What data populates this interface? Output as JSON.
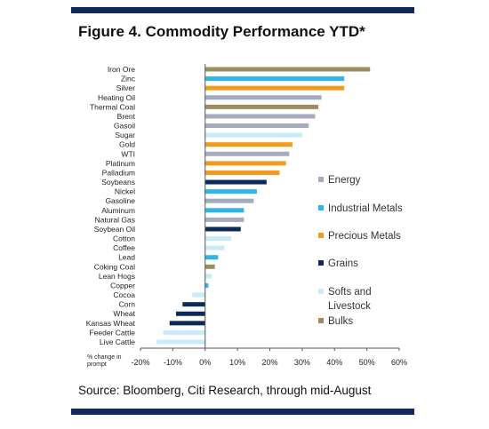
{
  "title": "Figure 4. Commodity Performance YTD*",
  "source": "Source: Bloomberg, Citi Research, through mid-August",
  "chart_data": {
    "type": "bar",
    "orientation": "horizontal",
    "title": "Figure 4. Commodity Performance YTD*",
    "xlabel": "% change in prompt",
    "xlim": [
      -20,
      60
    ],
    "xticks": [
      "-20%",
      "-10%",
      "0%",
      "10%",
      "20%",
      "30%",
      "40%",
      "50%",
      "60%"
    ],
    "xtick_values": [
      -20,
      -10,
      0,
      10,
      20,
      30,
      40,
      50,
      60
    ],
    "grid": false,
    "legend_position": "right",
    "colors": {
      "Energy": "#a4abbd",
      "Industrial Metals": "#2eb6e8",
      "Precious Metals": "#f29a1f",
      "Grains": "#0d2b57",
      "Softs and Livestock": "#c7ecf8",
      "Bulks": "#9b8d5f"
    },
    "legend": [
      {
        "name": "Energy",
        "line1": "Energy",
        "line2": ""
      },
      {
        "name": "Industrial Metals",
        "line1": "Industrial Metals",
        "line2": ""
      },
      {
        "name": "Precious Metals",
        "line1": "Precious Metals",
        "line2": ""
      },
      {
        "name": "Grains",
        "line1": "Grains",
        "line2": ""
      },
      {
        "name": "Softs and Livestock",
        "line1": "Softs and",
        "line2": "Livestock"
      },
      {
        "name": "Bulks",
        "line1": "Bulks",
        "line2": ""
      }
    ],
    "categories": [
      "Iron Ore",
      "Zinc",
      "Silver",
      "Heating Oil",
      "Thermal Coal",
      "Brent",
      "Gasoil",
      "Sugar",
      "Gold",
      "WTI",
      "Platinum",
      "Palladium",
      "Soybeans",
      "Nickel",
      "Gasoline",
      "Aluminum",
      "Natural Gas",
      "Soybean Oil",
      "Cotton",
      "Coffee",
      "Lead",
      "Coking Coal",
      "Lean Hogs",
      "Copper",
      "Cocoa",
      "Corn",
      "Wheat",
      "Kansas Wheat",
      "Feeder Cattle",
      "Live Cattle"
    ],
    "values": [
      51,
      43,
      43,
      36,
      35,
      34,
      32,
      30,
      27,
      26,
      25,
      23,
      19,
      16,
      15,
      12,
      12,
      11,
      8,
      6,
      4,
      3,
      2,
      1,
      -4,
      -7,
      -9,
      -11,
      -13,
      -15
    ],
    "groups": [
      "Bulks",
      "Industrial Metals",
      "Precious Metals",
      "Energy",
      "Bulks",
      "Energy",
      "Energy",
      "Softs and Livestock",
      "Precious Metals",
      "Energy",
      "Precious Metals",
      "Precious Metals",
      "Grains",
      "Industrial Metals",
      "Energy",
      "Industrial Metals",
      "Energy",
      "Grains",
      "Softs and Livestock",
      "Softs and Livestock",
      "Industrial Metals",
      "Bulks",
      "Softs and Livestock",
      "Industrial Metals",
      "Softs and Livestock",
      "Grains",
      "Grains",
      "Grains",
      "Softs and Livestock",
      "Softs and Livestock"
    ]
  }
}
